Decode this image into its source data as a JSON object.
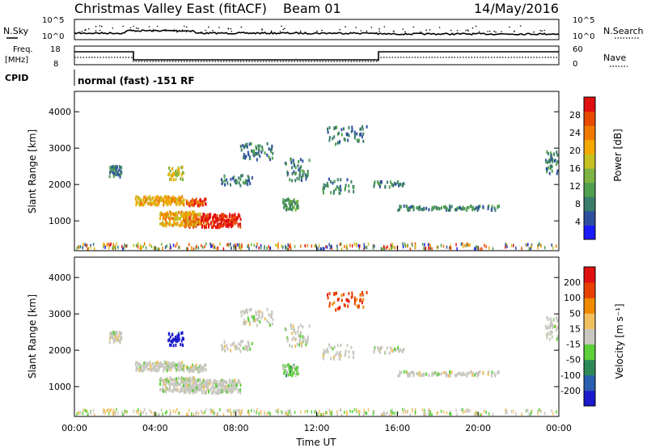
{
  "header": {
    "title": "Christmas Valley East (fitACF)",
    "beam": "Beam 01",
    "date": "14/May/2016"
  },
  "summary_panels": {
    "nsky_label": "N.Sky",
    "nsearch_label": "N.Search",
    "freq_label": "Freq.",
    "freq_unit": "[MHz]",
    "nave_label": "Nave",
    "cpid_label": "CPID",
    "cpid_text": "normal (fast) -151 RF",
    "noise_ticks": [
      "10^5",
      "10^0"
    ],
    "freq_ticks": [
      "18",
      "8"
    ],
    "nave_ticks": [
      "60",
      "0"
    ]
  },
  "chart_data": [
    {
      "type": "heatmap",
      "name": "power",
      "ylabel": "Slant Range [km]",
      "xlabel": "Time UT",
      "y_ticks": [
        1000,
        2000,
        3000,
        4000
      ],
      "x_ticks": [
        "00:00",
        "04:00",
        "08:00",
        "12:00",
        "16:00",
        "20:00",
        "00:00"
      ],
      "xlim_hours": [
        0,
        24
      ],
      "ylim_km": [
        180,
        4560
      ],
      "colorbar": {
        "label": "Power [dB]",
        "ticks": [
          4,
          8,
          12,
          16,
          20,
          24,
          28
        ],
        "colors": [
          "#1a1aff",
          "#2e4fa0",
          "#3a7d6b",
          "#4f9f4f",
          "#7cb342",
          "#c6c020",
          "#f2a900",
          "#f07a00",
          "#e84a00",
          "#e01010"
        ]
      }
    },
    {
      "type": "heatmap",
      "name": "velocity",
      "ylabel": "Slant Range [km]",
      "xlabel": "Time UT",
      "y_ticks": [
        1000,
        2000,
        3000,
        4000
      ],
      "x_ticks": [
        "00:00",
        "04:00",
        "08:00",
        "12:00",
        "16:00",
        "20:00",
        "00:00"
      ],
      "xlim_hours": [
        0,
        24
      ],
      "ylim_km": [
        180,
        4560
      ],
      "colorbar": {
        "label": "Velocity [m s⁻¹]",
        "ticks": [
          200,
          100,
          50,
          15,
          -15,
          -50,
          -100,
          -200
        ],
        "colors": [
          "#1a1acc",
          "#2b5fb0",
          "#2e8b57",
          "#5ccf3a",
          "#c8c8c0",
          "#f0c060",
          "#f08a00",
          "#e84000",
          "#e01010"
        ]
      }
    }
  ]
}
